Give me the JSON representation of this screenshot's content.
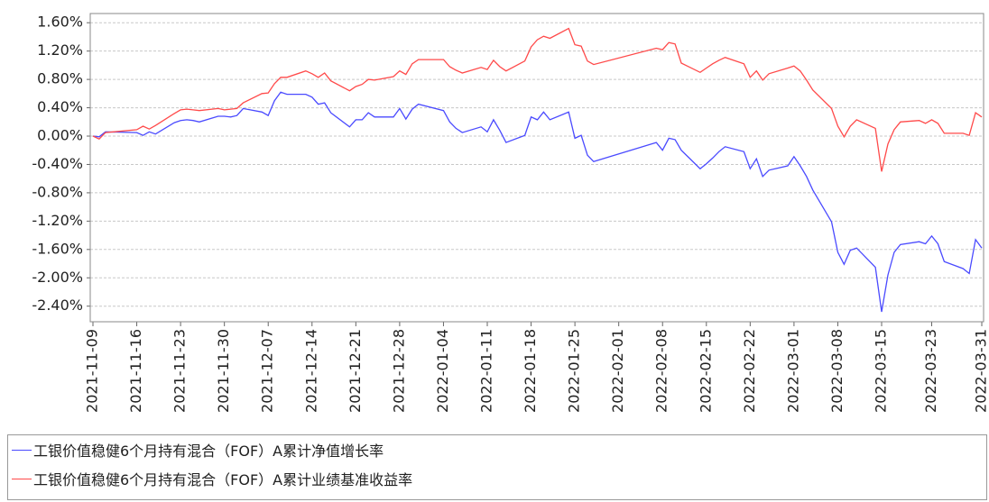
{
  "chart_data": {
    "type": "line",
    "x": [
      "2021-11-09",
      "2021-11-10",
      "2021-11-11",
      "2021-11-16",
      "2021-11-17",
      "2021-11-18",
      "2021-11-19",
      "2021-11-22",
      "2021-11-23",
      "2021-11-24",
      "2021-11-25",
      "2021-11-26",
      "2021-11-29",
      "2021-11-30",
      "2021-12-01",
      "2021-12-02",
      "2021-12-03",
      "2021-12-06",
      "2021-12-07",
      "2021-12-08",
      "2021-12-09",
      "2021-12-10",
      "2021-12-13",
      "2021-12-14",
      "2021-12-15",
      "2021-12-16",
      "2021-12-17",
      "2021-12-20",
      "2021-12-21",
      "2021-12-22",
      "2021-12-23",
      "2021-12-24",
      "2021-12-27",
      "2021-12-28",
      "2021-12-29",
      "2021-12-30",
      "2021-12-31",
      "2022-01-04",
      "2022-01-05",
      "2022-01-06",
      "2022-01-07",
      "2022-01-10",
      "2022-01-11",
      "2022-01-12",
      "2022-01-13",
      "2022-01-14",
      "2022-01-17",
      "2022-01-18",
      "2022-01-19",
      "2022-01-20",
      "2022-01-21",
      "2022-01-24",
      "2022-01-25",
      "2022-01-26",
      "2022-01-27",
      "2022-01-28",
      "2022-02-07",
      "2022-02-08",
      "2022-02-09",
      "2022-02-10",
      "2022-02-11",
      "2022-02-14",
      "2022-02-15",
      "2022-02-16",
      "2022-02-17",
      "2022-02-18",
      "2022-02-21",
      "2022-02-22",
      "2022-02-23",
      "2022-02-24",
      "2022-02-25",
      "2022-02-28",
      "2022-03-01",
      "2022-03-02",
      "2022-03-03",
      "2022-03-04",
      "2022-03-07",
      "2022-03-08",
      "2022-03-09",
      "2022-03-10",
      "2022-03-11",
      "2022-03-14",
      "2022-03-15",
      "2022-03-16",
      "2022-03-17",
      "2022-03-18",
      "2022-03-21",
      "2022-03-22",
      "2022-03-23",
      "2022-03-24",
      "2022-03-25",
      "2022-03-28",
      "2022-03-29",
      "2022-03-30",
      "2022-03-31"
    ],
    "series": [
      {
        "name": "工银价值稳健6个月持有混合（FOF）A累计净值增长率",
        "color": "#4a4aff",
        "values": [
          0.0,
          -0.01,
          0.06,
          0.05,
          0.01,
          0.06,
          0.03,
          0.19,
          0.22,
          0.23,
          0.22,
          0.2,
          0.28,
          0.28,
          0.27,
          0.29,
          0.39,
          0.34,
          0.29,
          0.5,
          0.62,
          0.59,
          0.59,
          0.55,
          0.45,
          0.47,
          0.33,
          0.13,
          0.23,
          0.23,
          0.33,
          0.27,
          0.27,
          0.39,
          0.24,
          0.38,
          0.45,
          0.36,
          0.2,
          0.11,
          0.05,
          0.13,
          0.06,
          0.23,
          0.08,
          -0.09,
          0.01,
          0.27,
          0.23,
          0.34,
          0.23,
          0.34,
          -0.03,
          0.01,
          -0.27,
          -0.36,
          -0.09,
          -0.2,
          -0.03,
          -0.05,
          -0.2,
          -0.46,
          -0.39,
          -0.31,
          -0.22,
          -0.15,
          -0.22,
          -0.46,
          -0.32,
          -0.57,
          -0.48,
          -0.42,
          -0.29,
          -0.42,
          -0.57,
          -0.76,
          -1.21,
          -1.64,
          -1.81,
          -1.61,
          -1.58,
          -1.85,
          -2.48,
          -1.96,
          -1.64,
          -1.53,
          -1.49,
          -1.52,
          -1.41,
          -1.52,
          -1.77,
          -1.87,
          -1.94,
          -1.46,
          -1.58
        ]
      },
      {
        "name": "工银价值稳健6个月持有混合（FOF）A累计业绩基准收益率",
        "color": "#ff4a4a",
        "values": [
          0.0,
          -0.04,
          0.05,
          0.09,
          0.14,
          0.1,
          0.15,
          0.32,
          0.37,
          0.38,
          0.37,
          0.36,
          0.39,
          0.37,
          0.38,
          0.39,
          0.47,
          0.6,
          0.61,
          0.74,
          0.83,
          0.83,
          0.92,
          0.88,
          0.83,
          0.89,
          0.78,
          0.64,
          0.7,
          0.73,
          0.8,
          0.79,
          0.84,
          0.92,
          0.87,
          1.02,
          1.08,
          1.08,
          0.98,
          0.93,
          0.89,
          0.97,
          0.94,
          1.07,
          0.98,
          0.92,
          1.06,
          1.26,
          1.36,
          1.41,
          1.38,
          1.52,
          1.29,
          1.27,
          1.06,
          1.01,
          1.24,
          1.22,
          1.32,
          1.3,
          1.03,
          0.9,
          0.96,
          1.02,
          1.07,
          1.11,
          1.02,
          0.83,
          0.92,
          0.79,
          0.88,
          0.96,
          0.99,
          0.92,
          0.79,
          0.65,
          0.39,
          0.14,
          -0.01,
          0.14,
          0.23,
          0.11,
          -0.5,
          -0.11,
          0.09,
          0.2,
          0.22,
          0.18,
          0.23,
          0.18,
          0.04,
          0.04,
          0.01,
          0.33,
          0.27
        ]
      }
    ],
    "xlim": [
      "2021-11-09",
      "2022-03-31"
    ],
    "xticks": [
      "2021-11-09",
      "2021-11-16",
      "2021-11-23",
      "2021-11-30",
      "2021-12-07",
      "2021-12-14",
      "2021-12-21",
      "2021-12-28",
      "2022-01-04",
      "2022-01-11",
      "2022-01-18",
      "2022-01-25",
      "2022-02-01",
      "2022-02-08",
      "2022-02-15",
      "2022-02-22",
      "2022-03-01",
      "2022-03-08",
      "2022-03-15",
      "2022-03-23",
      "2022-03-31"
    ],
    "ylim": [
      -2.62,
      1.73
    ],
    "yticks": [
      {
        "value": 1.6,
        "label": "1.60%"
      },
      {
        "value": 1.2,
        "label": "1.20%"
      },
      {
        "value": 0.8,
        "label": "0.80%"
      },
      {
        "value": 0.4,
        "label": "0.40%"
      },
      {
        "value": 0,
        "label": "0.00%"
      },
      {
        "value": -0.4,
        "label": "-0.40%"
      },
      {
        "value": -0.8,
        "label": "-0.80%"
      },
      {
        "value": -1.2,
        "label": "-1.20%"
      },
      {
        "value": -1.6,
        "label": "-1.60%"
      },
      {
        "value": -2.0,
        "label": "-2.00%"
      },
      {
        "value": -2.4,
        "label": "-2.40%"
      }
    ],
    "grid": true,
    "legend": "bottom"
  }
}
